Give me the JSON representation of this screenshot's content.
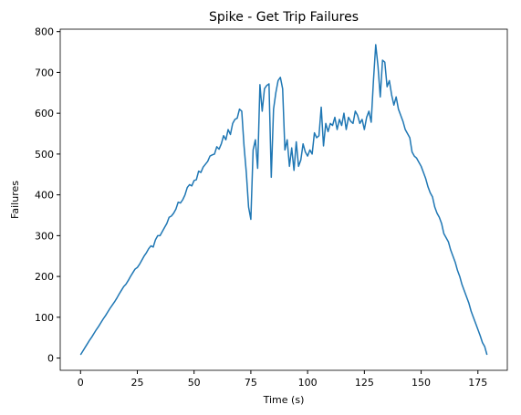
{
  "chart_data": {
    "type": "line",
    "title": "Spike - Get Trip Failures",
    "xlabel": "Time (s)",
    "ylabel": "Failures",
    "x": [
      0,
      1,
      2,
      3,
      4,
      5,
      6,
      7,
      8,
      9,
      10,
      11,
      12,
      13,
      14,
      15,
      16,
      17,
      18,
      19,
      20,
      21,
      22,
      23,
      24,
      25,
      26,
      27,
      28,
      29,
      30,
      31,
      32,
      33,
      34,
      35,
      36,
      37,
      38,
      39,
      40,
      41,
      42,
      43,
      44,
      45,
      46,
      47,
      48,
      49,
      50,
      51,
      52,
      53,
      54,
      55,
      56,
      57,
      58,
      59,
      60,
      61,
      62,
      63,
      64,
      65,
      66,
      67,
      68,
      69,
      70,
      71,
      72,
      73,
      74,
      75,
      76,
      77,
      78,
      79,
      80,
      81,
      82,
      83,
      84,
      85,
      86,
      87,
      88,
      89,
      90,
      91,
      92,
      93,
      94,
      95,
      96,
      97,
      98,
      99,
      100,
      101,
      102,
      103,
      104,
      105,
      106,
      107,
      108,
      109,
      110,
      111,
      112,
      113,
      114,
      115,
      116,
      117,
      118,
      119,
      120,
      121,
      122,
      123,
      124,
      125,
      126,
      127,
      128,
      129,
      130,
      131,
      132,
      133,
      134,
      135,
      136,
      137,
      138,
      139,
      140,
      141,
      142,
      143,
      144,
      145,
      146,
      147,
      148,
      149,
      150,
      151,
      152,
      153,
      154,
      155,
      156,
      157,
      158,
      159,
      160,
      161,
      162,
      163,
      164,
      165,
      166,
      167,
      168,
      169,
      170,
      171,
      172,
      173,
      174,
      175,
      176,
      177,
      178,
      179
    ],
    "series": [
      {
        "name": "Failures",
        "color": "#1f77b4",
        "values": [
          8,
          17,
          26,
          35,
          44,
          52,
          61,
          70,
          78,
          87,
          96,
          104,
          113,
          122,
          130,
          138,
          147,
          157,
          166,
          175,
          181,
          190,
          200,
          209,
          218,
          222,
          230,
          240,
          250,
          258,
          268,
          275,
          272,
          290,
          300,
          300,
          310,
          320,
          330,
          345,
          348,
          355,
          365,
          382,
          380,
          388,
          400,
          418,
          425,
          422,
          435,
          437,
          458,
          455,
          468,
          475,
          482,
          495,
          498,
          500,
          518,
          512,
          525,
          545,
          535,
          560,
          548,
          575,
          585,
          588,
          610,
          605,
          520,
          455,
          370,
          340,
          510,
          535,
          465,
          670,
          605,
          660,
          668,
          672,
          443,
          610,
          650,
          680,
          688,
          660,
          510,
          535,
          470,
          515,
          460,
          530,
          470,
          485,
          525,
          505,
          495,
          510,
          500,
          552,
          540,
          545,
          615,
          520,
          575,
          555,
          575,
          570,
          590,
          560,
          585,
          570,
          600,
          560,
          590,
          580,
          575,
          605,
          595,
          575,
          585,
          560,
          590,
          605,
          578,
          680,
          768,
          715,
          640,
          730,
          725,
          665,
          680,
          645,
          620,
          640,
          610,
          595,
          580,
          560,
          550,
          540,
          505,
          495,
          490,
          480,
          470,
          455,
          440,
          420,
          405,
          395,
          370,
          355,
          345,
          330,
          305,
          295,
          285,
          265,
          250,
          235,
          215,
          200,
          180,
          165,
          150,
          135,
          115,
          100,
          85,
          70,
          55,
          38,
          28,
          8
        ]
      }
    ],
    "xlim": [
      -8.95,
      187.95
    ],
    "ylim": [
      -30,
      806
    ],
    "xticks": [
      0,
      25,
      50,
      75,
      100,
      125,
      150,
      175
    ],
    "yticks": [
      0,
      100,
      200,
      300,
      400,
      500,
      600,
      700,
      800
    ],
    "grid": false
  }
}
